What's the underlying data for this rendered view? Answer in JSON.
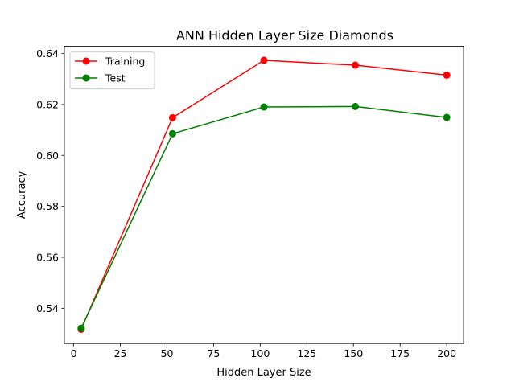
{
  "chart_data": {
    "type": "line",
    "title": "ANN Hidden Layer Size Diamonds",
    "xlabel": "Hidden Layer Size",
    "ylabel": "Accuracy",
    "xlim": [
      -5,
      209
    ],
    "ylim": [
      0.5262,
      0.6428
    ],
    "xticks": [
      0,
      25,
      50,
      75,
      100,
      125,
      150,
      175,
      200
    ],
    "yticks": [
      0.54,
      0.56,
      0.58,
      0.6,
      0.62,
      0.64
    ],
    "xtick_labels": [
      "0",
      "25",
      "50",
      "75",
      "100",
      "125",
      "150",
      "175",
      "200"
    ],
    "ytick_labels": [
      "0.54",
      "0.56",
      "0.58",
      "0.60",
      "0.62",
      "0.64"
    ],
    "x": [
      4,
      53,
      102,
      151,
      200
    ],
    "series": [
      {
        "name": "Training",
        "color": "#ff0000",
        "values": [
          0.5318,
          0.6148,
          0.6373,
          0.6354,
          0.6315
        ]
      },
      {
        "name": "Test",
        "color": "#008000",
        "values": [
          0.5322,
          0.6085,
          0.619,
          0.6192,
          0.6149
        ]
      }
    ],
    "grid": false,
    "legend_position": "top-left"
  }
}
